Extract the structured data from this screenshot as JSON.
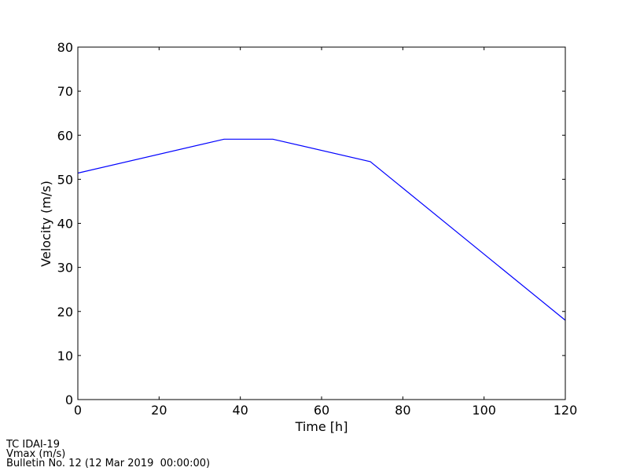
{
  "chart_data": {
    "type": "line",
    "x": [
      0,
      36,
      48,
      72,
      120
    ],
    "series": [
      {
        "name": "Vmax",
        "color": "#0000ff",
        "values": [
          51.4,
          59.1,
          59.1,
          54,
          18
        ]
      }
    ],
    "xlabel": "Time [h]",
    "ylabel": "Velocity (m/s)",
    "xlim": [
      0,
      120
    ],
    "xticks": [
      0,
      20,
      40,
      60,
      80,
      100,
      120
    ],
    "ylim": [
      0,
      80
    ],
    "yticks": [
      0,
      10,
      20,
      30,
      40,
      50,
      60,
      70,
      80
    ],
    "grid": false,
    "legend": false,
    "annotations": [
      "TC IDAI-19",
      "Vmax (m/s)",
      "Bulletin No. 12 (12 Mar 2019  00:00:00)"
    ]
  }
}
